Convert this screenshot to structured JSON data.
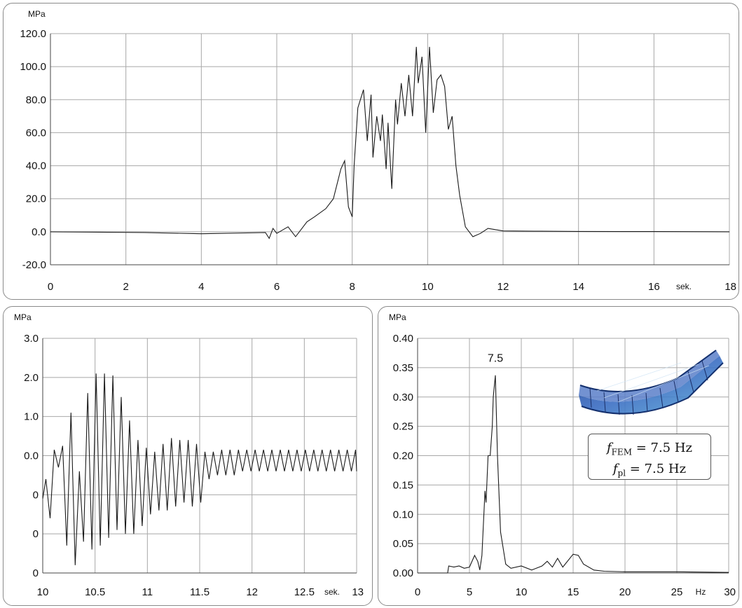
{
  "chart_data": [
    {
      "type": "line",
      "ylabel": "MPa",
      "xunit": "sek.",
      "xlim": [
        0,
        18
      ],
      "ylim": [
        -20,
        120
      ],
      "xticks": [
        "0",
        "2",
        "4",
        "6",
        "8",
        "10",
        "12",
        "14",
        "16",
        "18"
      ],
      "yticks": [
        "-20.0",
        "0.0",
        "20.0",
        "40.0",
        "60.0",
        "80.0",
        "100.0",
        "120.0"
      ],
      "grid": true,
      "series": [
        {
          "x": [
            0,
            2.5,
            4,
            5.7,
            5.8,
            5.9,
            6.0,
            6.3,
            6.5,
            6.8,
            7.0,
            7.3,
            7.5,
            7.7,
            7.8,
            7.9,
            8.0,
            8.05,
            8.15,
            8.3,
            8.4,
            8.5,
            8.55,
            8.65,
            8.75,
            8.8,
            8.9,
            8.95,
            9.05,
            9.15,
            9.2,
            9.3,
            9.4,
            9.5,
            9.6,
            9.7,
            9.75,
            9.85,
            9.95,
            10.05,
            10.15,
            10.25,
            10.35,
            10.45,
            10.55,
            10.65,
            10.75,
            10.85,
            11.0,
            11.2,
            11.4,
            11.6,
            12.0,
            13,
            14,
            16,
            18
          ],
          "y": [
            0,
            -0.5,
            -1.2,
            -0.5,
            -4,
            2,
            -1,
            3,
            -3,
            6,
            9,
            14,
            20,
            38,
            43,
            15,
            9,
            40,
            75,
            86,
            55,
            83,
            45,
            70,
            55,
            71,
            38,
            66,
            26,
            80,
            65,
            90,
            70,
            95,
            70,
            112,
            90,
            106,
            60,
            112,
            72,
            92,
            95,
            88,
            62,
            70,
            40,
            22,
            3,
            -3,
            -1,
            2,
            0.5,
            0.3,
            0.2,
            0.1,
            0
          ]
        }
      ]
    },
    {
      "type": "line",
      "ylabel": "MPa",
      "xunit": "sek.",
      "xlim": [
        10,
        13
      ],
      "ylim": [
        -3,
        3
      ],
      "xticks": [
        "10",
        "10.5",
        "11",
        "11.5",
        "12",
        "12.5",
        "13"
      ],
      "yticks": [
        "3.0",
        "2.0",
        "1.0",
        "0.0",
        "0",
        "0",
        "0"
      ],
      "grid": true,
      "series": [
        {
          "x": [
            10,
            10.03,
            10.07,
            10.11,
            10.15,
            10.19,
            10.23,
            10.27,
            10.31,
            10.35,
            10.39,
            10.43,
            10.47,
            10.51,
            10.55,
            10.59,
            10.63,
            10.67,
            10.71,
            10.75,
            10.79,
            10.83,
            10.87,
            10.91,
            10.95,
            10.99,
            11.03,
            11.07,
            11.11,
            11.15,
            11.19,
            11.23,
            11.27,
            11.31,
            11.35,
            11.39,
            11.43,
            11.47,
            11.51,
            11.55,
            11.59,
            11.63,
            11.67,
            11.71,
            11.75,
            11.79,
            11.83,
            11.87,
            11.91,
            11.95,
            11.99,
            12.03,
            12.07,
            12.11,
            12.15,
            12.19,
            12.23,
            12.27,
            12.31,
            12.35,
            12.39,
            12.43,
            12.47,
            12.51,
            12.55,
            12.59,
            12.63,
            12.67,
            12.71,
            12.75,
            12.79,
            12.83,
            12.87,
            12.91,
            12.95,
            12.99,
            13
          ],
          "y": [
            -1.1,
            -0.6,
            -1.6,
            0.15,
            -0.3,
            0.25,
            -2.3,
            1.1,
            -2.8,
            -0.4,
            -2.2,
            1.6,
            -2.4,
            2.1,
            -2.3,
            2.1,
            -2.1,
            2.05,
            -1.9,
            1.5,
            -2.0,
            0.9,
            -2.0,
            0.4,
            -1.8,
            0.2,
            -1.5,
            0.1,
            -1.4,
            0.3,
            -1.4,
            0.45,
            -1.3,
            0.4,
            -1.2,
            0.4,
            -1.3,
            0.3,
            -1.2,
            0.1,
            -0.6,
            0.1,
            -0.5,
            0.15,
            -0.5,
            0.15,
            -0.5,
            0.15,
            -0.4,
            0.15,
            -0.4,
            0.15,
            -0.4,
            0.15,
            -0.4,
            0.15,
            -0.4,
            0.15,
            -0.4,
            0.15,
            -0.4,
            0.15,
            -0.4,
            0.15,
            -0.4,
            0.15,
            -0.4,
            0.15,
            -0.4,
            0.15,
            -0.4,
            0.15,
            -0.4,
            0.15,
            -0.4,
            0.15,
            -0.4
          ]
        }
      ]
    },
    {
      "type": "line",
      "ylabel": "MPa",
      "xunit": "Hz",
      "xlim": [
        0,
        30
      ],
      "ylim": [
        0,
        0.4
      ],
      "xticks": [
        "0",
        "5",
        "10",
        "15",
        "20",
        "25",
        "30"
      ],
      "yticks": [
        "0.00",
        "0.05",
        "0.10",
        "0.15",
        "0.20",
        "0.25",
        "0.30",
        "0.35",
        "0.40"
      ],
      "grid": true,
      "annotations": [
        {
          "text": "7.5",
          "x": 7.5,
          "y": 0.36
        }
      ],
      "formula": {
        "f1": "f",
        "s1": "FEM",
        "v1": " = 7.5 Hz",
        "f2": "f",
        "s2": "pl",
        "v2": " = 7.5 Hz"
      },
      "series": [
        {
          "x": [
            0,
            2.9,
            3.0,
            3.5,
            4.0,
            4.5,
            5.0,
            5.5,
            5.8,
            6.0,
            6.2,
            6.5,
            6.6,
            6.8,
            7.0,
            7.2,
            7.3,
            7.5,
            7.7,
            8.0,
            8.5,
            9.0,
            10,
            11,
            12,
            12.5,
            13,
            13.5,
            14,
            15,
            15.5,
            16,
            17,
            18,
            20,
            25,
            30
          ],
          "y": [
            0,
            0,
            0.012,
            0.01,
            0.012,
            0.008,
            0.01,
            0.03,
            0.02,
            0.005,
            0.03,
            0.14,
            0.12,
            0.2,
            0.2,
            0.25,
            0.3,
            0.337,
            0.2,
            0.07,
            0.015,
            0.008,
            0.012,
            0.005,
            0.012,
            0.02,
            0.01,
            0.025,
            0.01,
            0.032,
            0.03,
            0.015,
            0.005,
            0.003,
            0.002,
            0.002,
            0.001
          ]
        }
      ]
    }
  ]
}
